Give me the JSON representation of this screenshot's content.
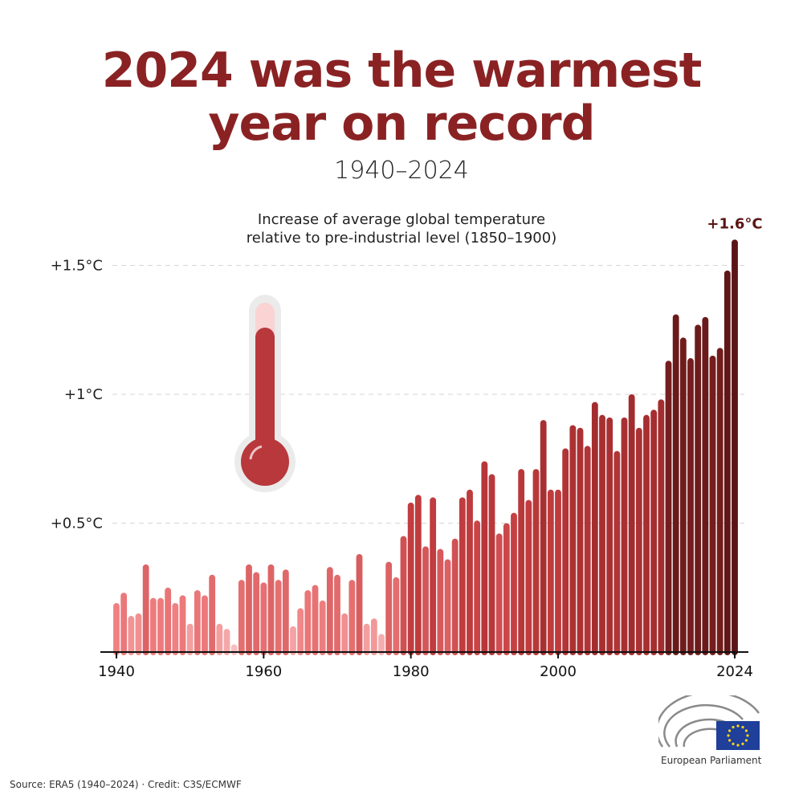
{
  "title_line1": "2024 was the warmest",
  "title_line2": "year on record",
  "subtitle": "1940–2024",
  "source": "Source: ERA5 (1940–2024) · Credit: C3S/ECMWF",
  "logo_text": "European Parliament",
  "chart_data": {
    "type": "bar",
    "title": "Increase of average global temperature relative to pre-industrial level (1850–1900)",
    "title_line1": "Increase of average global temperature",
    "title_line2": "relative to pre-industrial level (1850–1900)",
    "ylim": [
      0,
      1.6
    ],
    "yticks": [
      {
        "value": 0.5,
        "label": "+0.5°C"
      },
      {
        "value": 1,
        "label": "+1°C"
      },
      {
        "value": 1.5,
        "label": "+1.5°C"
      }
    ],
    "xticks": [
      {
        "value": 1940,
        "label": "1940"
      },
      {
        "value": 1960,
        "label": "1960"
      },
      {
        "value": 1980,
        "label": "1980"
      },
      {
        "value": 2000,
        "label": "2000"
      },
      {
        "value": 2024,
        "label": "2024"
      }
    ],
    "grid": "horizontal dashed",
    "annotation": {
      "x": 2024,
      "label": "+1.6°C"
    },
    "colors": {
      "low": "#f9c9c9",
      "mid": "#e25a5c",
      "high": "#5a1515",
      "text": "#5a1515"
    },
    "x": [
      1940,
      1941,
      1942,
      1943,
      1944,
      1945,
      1946,
      1947,
      1948,
      1949,
      1950,
      1951,
      1952,
      1953,
      1954,
      1955,
      1956,
      1957,
      1958,
      1959,
      1960,
      1961,
      1962,
      1963,
      1964,
      1965,
      1966,
      1967,
      1968,
      1969,
      1970,
      1971,
      1972,
      1973,
      1974,
      1975,
      1976,
      1977,
      1978,
      1979,
      1980,
      1981,
      1982,
      1983,
      1984,
      1985,
      1986,
      1987,
      1988,
      1989,
      1990,
      1991,
      1992,
      1993,
      1994,
      1995,
      1996,
      1997,
      1998,
      1999,
      2000,
      2001,
      2002,
      2003,
      2004,
      2005,
      2006,
      2007,
      2008,
      2009,
      2010,
      2011,
      2012,
      2013,
      2014,
      2015,
      2016,
      2017,
      2018,
      2019,
      2020,
      2021,
      2022,
      2023,
      2024
    ],
    "values": [
      0.19,
      0.23,
      0.14,
      0.15,
      0.34,
      0.21,
      0.21,
      0.25,
      0.19,
      0.22,
      0.11,
      0.24,
      0.22,
      0.3,
      0.11,
      0.09,
      0.03,
      0.28,
      0.34,
      0.31,
      0.27,
      0.34,
      0.28,
      0.32,
      0.1,
      0.17,
      0.24,
      0.26,
      0.2,
      0.33,
      0.3,
      0.15,
      0.28,
      0.38,
      0.11,
      0.13,
      0.07,
      0.35,
      0.29,
      0.45,
      0.58,
      0.61,
      0.41,
      0.6,
      0.4,
      0.36,
      0.44,
      0.6,
      0.63,
      0.51,
      0.74,
      0.69,
      0.46,
      0.5,
      0.54,
      0.71,
      0.59,
      0.71,
      0.9,
      0.63,
      0.63,
      0.79,
      0.88,
      0.87,
      0.8,
      0.97,
      0.92,
      0.91,
      0.78,
      0.91,
      1.0,
      0.87,
      0.92,
      0.94,
      0.98,
      1.13,
      1.31,
      1.22,
      1.14,
      1.27,
      1.3,
      1.15,
      1.18,
      1.48,
      1.6
    ]
  }
}
